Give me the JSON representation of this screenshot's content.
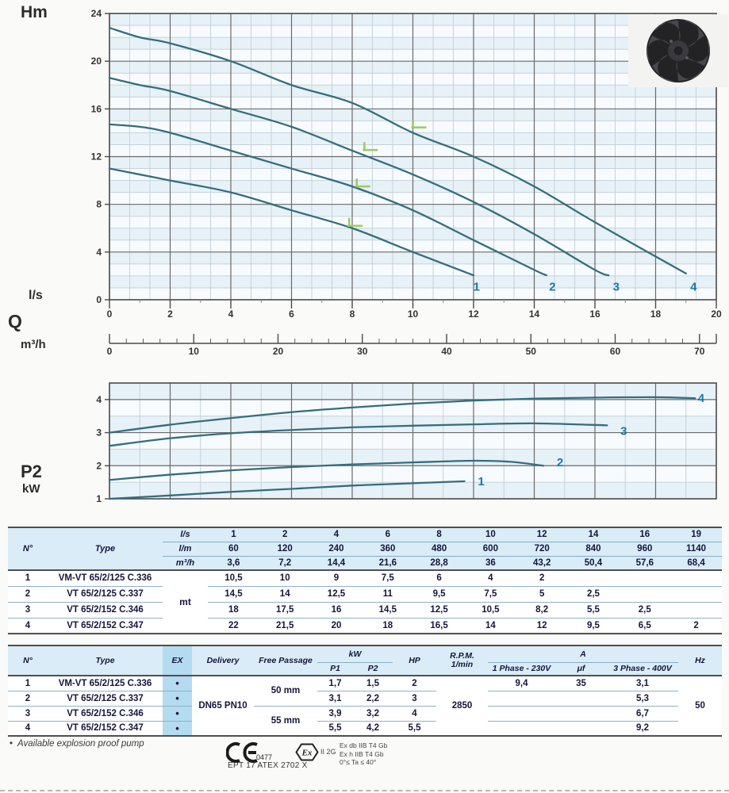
{
  "labels": {
    "head_axis": "Hm",
    "flow_unit_ls": "l/s",
    "flow_symbol": "Q",
    "flow_unit_m3h": "m³/h",
    "power_axis": "P2",
    "power_unit": "kW"
  },
  "colors": {
    "curve": "#336e7e",
    "series_label": "#1878aa",
    "bep_marker": "#9ccc65",
    "grid_major": "#6a6a6a",
    "grid_minor": "#c6d2da",
    "plot_border": "#4a4a4a",
    "band_a": "#e7f1f8",
    "band_b": "#f8fbfd",
    "tick_text": "#333333"
  },
  "chart_data": [
    {
      "type": "line",
      "name": "head-flow-curves",
      "ylabel": "Hm",
      "xlabel": "l/s",
      "xlabel_secondary": "m³/h",
      "xlim": [
        0,
        20
      ],
      "ylim": [
        0,
        24
      ],
      "x_ticks": [
        0,
        2,
        4,
        6,
        8,
        10,
        12,
        14,
        16,
        18,
        20
      ],
      "y_ticks": [
        0,
        4,
        8,
        12,
        16,
        20,
        24
      ],
      "x2_ticks": [
        0,
        10,
        20,
        30,
        40,
        50,
        60,
        70
      ],
      "x2_max": 72,
      "series": [
        {
          "name": "1",
          "points": [
            [
              0,
              11
            ],
            [
              1,
              10.5
            ],
            [
              2,
              10
            ],
            [
              4,
              9
            ],
            [
              6,
              7.5
            ],
            [
              8,
              6
            ],
            [
              10,
              4
            ],
            [
              12,
              2.05
            ]
          ],
          "label_pos": [
            12.1,
            1.1
          ]
        },
        {
          "name": "2",
          "points": [
            [
              0,
              14.7
            ],
            [
              1,
              14.5
            ],
            [
              2,
              14
            ],
            [
              4,
              12.5
            ],
            [
              6,
              11
            ],
            [
              8,
              9.5
            ],
            [
              10,
              7.5
            ],
            [
              12,
              5
            ],
            [
              14,
              2.5
            ],
            [
              14.4,
              2.05
            ]
          ],
          "label_pos": [
            14.6,
            1.1
          ]
        },
        {
          "name": "3",
          "points": [
            [
              0,
              18.6
            ],
            [
              1,
              18
            ],
            [
              2,
              17.5
            ],
            [
              4,
              16
            ],
            [
              6,
              14.5
            ],
            [
              8,
              12.5
            ],
            [
              10,
              10.5
            ],
            [
              12,
              8.2
            ],
            [
              14,
              5.5
            ],
            [
              16,
              2.5
            ],
            [
              16.45,
              2.05
            ]
          ],
          "label_pos": [
            16.7,
            1.1
          ]
        },
        {
          "name": "4",
          "points": [
            [
              0,
              22.8
            ],
            [
              1,
              22
            ],
            [
              2,
              21.5
            ],
            [
              4,
              20
            ],
            [
              6,
              18
            ],
            [
              8,
              16.5
            ],
            [
              10,
              14
            ],
            [
              12,
              12
            ],
            [
              14,
              9.5
            ],
            [
              16,
              6.5
            ],
            [
              19,
              2.2
            ]
          ],
          "label_pos": [
            19.25,
            1.1
          ]
        }
      ],
      "bep_markers": [
        [
          7.9,
          6.2
        ],
        [
          8.15,
          9.5
        ],
        [
          8.4,
          12.55
        ],
        [
          10.0,
          14.45
        ]
      ]
    },
    {
      "type": "line",
      "name": "power-flow-curves",
      "ylabel": "P2 kW",
      "xlim": [
        0,
        20
      ],
      "ylim": [
        1,
        4.5
      ],
      "y_ticks": [
        1,
        2,
        3,
        4
      ],
      "series": [
        {
          "name": "1",
          "points": [
            [
              0,
              1.0
            ],
            [
              2,
              1.1
            ],
            [
              4,
              1.21
            ],
            [
              6,
              1.3
            ],
            [
              8,
              1.4
            ],
            [
              10,
              1.47
            ],
            [
              11.7,
              1.53
            ]
          ],
          "label_pos": [
            12.25,
            1.53
          ]
        },
        {
          "name": "2",
          "points": [
            [
              0,
              1.57
            ],
            [
              2,
              1.73
            ],
            [
              4,
              1.86
            ],
            [
              6,
              1.96
            ],
            [
              8,
              2.04
            ],
            [
              10,
              2.1
            ],
            [
              12,
              2.15
            ],
            [
              13.2,
              2.12
            ],
            [
              14.3,
              2.0
            ]
          ],
          "label_pos": [
            14.85,
            2.1
          ]
        },
        {
          "name": "3",
          "points": [
            [
              0,
              2.6
            ],
            [
              2,
              2.83
            ],
            [
              4,
              2.98
            ],
            [
              6,
              3.08
            ],
            [
              8,
              3.16
            ],
            [
              10,
              3.21
            ],
            [
              12,
              3.25
            ],
            [
              14,
              3.28
            ],
            [
              16.4,
              3.22
            ]
          ],
          "label_pos": [
            16.95,
            3.05
          ]
        },
        {
          "name": "4",
          "points": [
            [
              0,
              3.0
            ],
            [
              2,
              3.24
            ],
            [
              4,
              3.44
            ],
            [
              6,
              3.62
            ],
            [
              8,
              3.76
            ],
            [
              10,
              3.88
            ],
            [
              12,
              3.97
            ],
            [
              14,
              4.03
            ],
            [
              16,
              4.06
            ],
            [
              18,
              4.07
            ],
            [
              19.3,
              4.04
            ]
          ],
          "label_pos": [
            19.5,
            4.04
          ]
        }
      ]
    }
  ],
  "table_hydraulic": {
    "col_n": "N°",
    "col_type": "Type",
    "unit_rows": [
      {
        "unit": "l/s",
        "values": [
          "1",
          "2",
          "4",
          "6",
          "8",
          "10",
          "12",
          "14",
          "16",
          "19"
        ]
      },
      {
        "unit": "l/m",
        "values": [
          "60",
          "120",
          "240",
          "360",
          "480",
          "600",
          "720",
          "840",
          "960",
          "1140"
        ]
      },
      {
        "unit": "m³/h",
        "values": [
          "3,6",
          "7,2",
          "14,4",
          "21,6",
          "28,8",
          "36",
          "43,2",
          "50,4",
          "57,6",
          "68,4"
        ]
      }
    ],
    "body_unit": "mt",
    "rows": [
      {
        "n": "1",
        "type": "VM-VT 65/2/125 C.336",
        "values": [
          "10,5",
          "10",
          "9",
          "7,5",
          "6",
          "4",
          "2",
          "",
          "",
          ""
        ]
      },
      {
        "n": "2",
        "type": "VT 65/2/125 C.337",
        "values": [
          "14,5",
          "14",
          "12,5",
          "11",
          "9,5",
          "7,5",
          "5",
          "2,5",
          "",
          ""
        ]
      },
      {
        "n": "3",
        "type": "VT 65/2/152 C.346",
        "values": [
          "18",
          "17,5",
          "16",
          "14,5",
          "12,5",
          "10,5",
          "8,2",
          "5,5",
          "2,5",
          ""
        ]
      },
      {
        "n": "4",
        "type": "VT 65/2/152 C.347",
        "values": [
          "22",
          "21,5",
          "20",
          "18",
          "16,5",
          "14",
          "12",
          "9,5",
          "6,5",
          "2"
        ]
      }
    ]
  },
  "table_technical": {
    "headers": {
      "n": "N°",
      "type": "Type",
      "ex": "EX",
      "delivery": "Delivery",
      "free_passage": "Free Passage",
      "kw": "kW",
      "p1": "P1",
      "p2": "P2",
      "hp": "HP",
      "rpm": "R.P.M.",
      "rpm_unit": "1/min",
      "a": "A",
      "phase1": "1 Phase - 230V",
      "uf": "μf",
      "phase3": "3 Phase - 400V",
      "hz": "Hz"
    },
    "delivery_value": "DN65 PN10",
    "free_passage_groups": [
      "50 mm",
      "55 mm"
    ],
    "rpm_value": "2850",
    "hz_value": "50",
    "ex_mark": "•",
    "rows": [
      {
        "n": "1",
        "type": "VM-VT 65/2/125 C.336",
        "p1": "1,7",
        "p2": "1,5",
        "hp": "2",
        "phase1": "9,4",
        "uf": "35",
        "phase3": "3,1"
      },
      {
        "n": "2",
        "type": "VT 65/2/125 C.337",
        "p1": "3,1",
        "p2": "2,2",
        "hp": "3",
        "phase1": "",
        "uf": "",
        "phase3": "5,3"
      },
      {
        "n": "3",
        "type": "VT 65/2/152 C.346",
        "p1": "3,9",
        "p2": "3,2",
        "hp": "4",
        "phase1": "",
        "uf": "",
        "phase3": "6,7"
      },
      {
        "n": "4",
        "type": "VT 65/2/152 C.347",
        "p1": "5,5",
        "p2": "4,2",
        "hp": "5,5",
        "phase1": "",
        "uf": "",
        "phase3": "9,2"
      }
    ]
  },
  "footer": {
    "note": "Available explosion proof pump",
    "ce_number": "0477",
    "atex_cert": "EPT 17 ATEX 2702 X",
    "ex_category": "II 2G",
    "ex_lines": [
      "Ex db IIB T4 Gb",
      "Ex h IIB T4 Gb",
      "0°≤ Ta ≤ 40°"
    ]
  }
}
